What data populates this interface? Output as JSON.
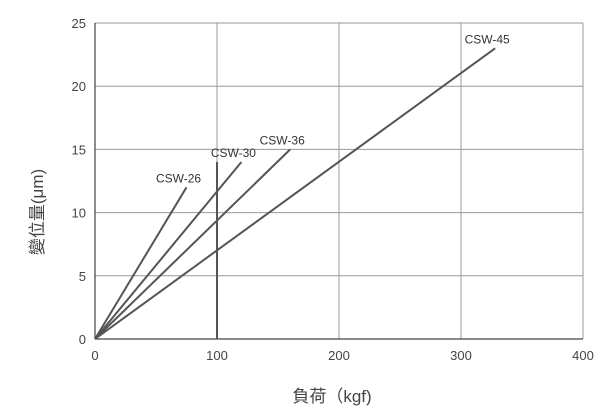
{
  "chart_data": {
    "type": "line",
    "title": "",
    "xlabel": "負荷（kgf)",
    "ylabel": "變位量(μm)",
    "xlim": [
      0,
      400
    ],
    "ylim": [
      0,
      25
    ],
    "xticks": [
      0,
      100,
      200,
      300,
      400
    ],
    "yticks": [
      0,
      5,
      10,
      15,
      20,
      25
    ],
    "grid": true,
    "legend": "none",
    "series": [
      {
        "name": "CSW-26",
        "x": [
          0,
          75
        ],
        "y": [
          0,
          12
        ]
      },
      {
        "name": "CSW-30",
        "x": [
          0,
          120
        ],
        "y": [
          0,
          14
        ]
      },
      {
        "name": "CSW-36",
        "x": [
          0,
          160
        ],
        "y": [
          0,
          15
        ]
      },
      {
        "name": "CSW-45",
        "x": [
          0,
          328
        ],
        "y": [
          0,
          23
        ]
      }
    ],
    "vertical_marker": {
      "x": 100,
      "y_top": 14
    },
    "colors": {
      "line": "#555555",
      "grid": "#999999",
      "axis": "#444444"
    }
  }
}
